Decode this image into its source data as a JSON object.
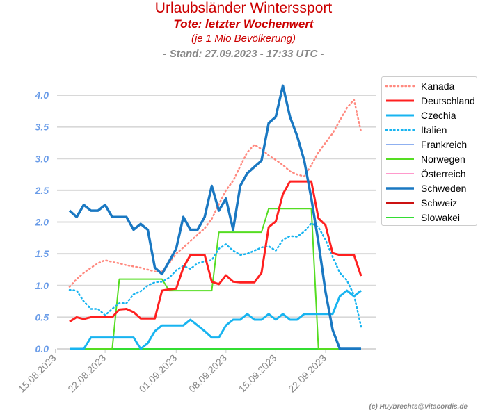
{
  "title": "Urlaubsländer Winterssport",
  "subtitle": "Tote: letzter Wochenwert",
  "subtitle2": "(je 1 Mio Bevölkerung)",
  "stand": "- Stand: 27.09.2023 - 17:33 UTC -",
  "credit": "(c) Huybrechts@vitacordis.de",
  "chart_data": {
    "type": "line",
    "start_date": "2023-08-17",
    "days": 42,
    "ylim": [
      0,
      4.0
    ],
    "yticks": [
      "0.0",
      "0.5",
      "1.0",
      "1.5",
      "2.0",
      "2.5",
      "3.0",
      "3.5",
      "4.0"
    ],
    "xticks": [
      {
        "label": "15.08.2023",
        "day": -2
      },
      {
        "label": "22.08.2023",
        "day": 5
      },
      {
        "label": "01.09.2023",
        "day": 15
      },
      {
        "label": "08.09.2023",
        "day": 22
      },
      {
        "label": "15.09.2023",
        "day": 29
      },
      {
        "label": "22.09.2023",
        "day": 36
      }
    ],
    "grid": true,
    "legend": "right",
    "series": [
      {
        "name": "Kanada",
        "color": "#ff8a80",
        "dash": "dot",
        "width": 2,
        "values": [
          0.98,
          1.1,
          1.2,
          1.28,
          1.35,
          1.4,
          1.37,
          1.35,
          1.32,
          1.3,
          1.28,
          1.25,
          1.22,
          1.22,
          1.35,
          1.5,
          1.6,
          1.7,
          1.8,
          1.9,
          2.05,
          2.28,
          2.5,
          2.65,
          2.88,
          3.1,
          3.22,
          3.15,
          3.05,
          2.98,
          2.9,
          2.8,
          2.75,
          2.72,
          2.9,
          3.1,
          3.25,
          3.4,
          3.6,
          3.8,
          3.93,
          3.42
        ]
      },
      {
        "name": "Deutschland",
        "color": "#ff2020",
        "dash": "solid",
        "width": 3,
        "values": [
          0.43,
          0.5,
          0.47,
          0.5,
          0.5,
          0.5,
          0.5,
          0.62,
          0.63,
          0.58,
          0.48,
          0.48,
          0.48,
          0.92,
          0.94,
          0.95,
          1.28,
          1.48,
          1.48,
          1.48,
          1.06,
          1.02,
          1.16,
          1.06,
          1.05,
          1.05,
          1.05,
          1.2,
          1.92,
          2.01,
          2.44,
          2.64,
          2.64,
          2.64,
          2.64,
          2.06,
          1.95,
          1.51,
          1.48,
          1.48,
          1.48,
          1.15
        ]
      },
      {
        "name": "Czechia",
        "color": "#18b4f0",
        "dash": "solid",
        "width": 3,
        "values": [
          0,
          0,
          0,
          0.18,
          0.18,
          0.18,
          0.18,
          0.18,
          0.18,
          0.18,
          0,
          0.09,
          0.28,
          0.37,
          0.37,
          0.37,
          0.37,
          0.46,
          0.37,
          0.28,
          0.18,
          0.18,
          0.37,
          0.46,
          0.46,
          0.55,
          0.46,
          0.46,
          0.55,
          0.46,
          0.55,
          0.46,
          0.46,
          0.55,
          0.55,
          0.55,
          0.55,
          0.55,
          0.83,
          0.92,
          0.83,
          0.92
        ]
      },
      {
        "name": "Italien",
        "color": "#18b4f0",
        "dash": "dot",
        "width": 2,
        "values": [
          0.93,
          0.92,
          0.75,
          0.63,
          0.63,
          0.53,
          0.63,
          0.72,
          0.72,
          0.86,
          0.91,
          1.0,
          1.05,
          1.06,
          1.12,
          1.24,
          1.31,
          1.26,
          1.35,
          1.38,
          1.4,
          1.58,
          1.65,
          1.55,
          1.48,
          1.5,
          1.55,
          1.6,
          1.62,
          1.55,
          1.72,
          1.78,
          1.77,
          1.85,
          1.98,
          1.92,
          1.72,
          1.45,
          1.2,
          1.08,
          0.85,
          0.35
        ]
      },
      {
        "name": "Frankreich",
        "color": "#8fb0f0",
        "dash": "solid",
        "width": 2,
        "values": [
          0,
          0,
          0,
          0,
          0,
          0,
          0,
          0,
          0,
          0,
          0,
          0,
          0,
          0,
          0,
          0,
          0,
          0,
          0,
          0,
          0,
          0,
          0,
          0,
          0,
          0,
          0,
          0,
          0,
          0,
          0,
          0,
          0,
          0,
          0,
          0,
          0,
          0,
          0,
          0,
          0,
          0
        ]
      },
      {
        "name": "Norwegen",
        "color": "#55dd22",
        "dash": "solid",
        "width": 2,
        "values": [
          0,
          0,
          0,
          0,
          0,
          0,
          0,
          1.1,
          1.1,
          1.1,
          1.1,
          1.1,
          1.1,
          1.1,
          0.92,
          0.92,
          0.92,
          0.92,
          0.92,
          0.92,
          0.92,
          1.84,
          1.84,
          1.84,
          1.84,
          1.84,
          1.84,
          1.84,
          2.21,
          2.21,
          2.21,
          2.21,
          2.21,
          2.21,
          2.21,
          0,
          0,
          0,
          0,
          0,
          0,
          0
        ]
      },
      {
        "name": "Österreich",
        "color": "#ff99cc",
        "dash": "solid",
        "width": 2,
        "values": [
          0,
          0,
          0,
          0,
          0,
          0,
          0,
          0,
          0,
          0,
          0,
          0,
          0,
          0,
          0,
          0,
          0,
          0,
          0,
          0,
          0,
          0,
          0,
          0,
          0,
          0,
          0,
          0,
          0,
          0,
          0,
          0,
          0,
          0,
          0,
          0,
          0,
          0,
          0,
          0,
          0,
          0
        ]
      },
      {
        "name": "Schweden",
        "color": "#1a78c2",
        "dash": "solid",
        "width": 3.5,
        "values": [
          2.18,
          2.08,
          2.27,
          2.18,
          2.18,
          2.27,
          2.08,
          2.08,
          2.08,
          1.88,
          1.97,
          1.88,
          1.28,
          1.18,
          1.38,
          1.58,
          2.08,
          1.88,
          1.88,
          2.08,
          2.57,
          2.18,
          2.37,
          1.88,
          2.57,
          2.77,
          2.87,
          2.97,
          3.56,
          3.66,
          4.15,
          3.66,
          3.36,
          2.97,
          2.37,
          1.68,
          0.9,
          0.3,
          0,
          0,
          0,
          0
        ]
      },
      {
        "name": "Schweiz",
        "color": "#cc1111",
        "dash": "solid",
        "width": 2,
        "values": [
          0,
          0,
          0,
          0,
          0,
          0,
          0,
          0,
          0,
          0,
          0,
          0,
          0,
          0,
          0,
          0,
          0,
          0,
          0,
          0,
          0,
          0,
          0,
          0,
          0,
          0,
          0,
          0,
          0,
          0,
          0,
          0,
          0,
          0,
          0,
          0,
          0,
          0,
          0,
          0,
          0,
          0
        ]
      },
      {
        "name": "Slowakei",
        "color": "#33dd33",
        "dash": "solid",
        "width": 2,
        "values": [
          0,
          0,
          0,
          0,
          0,
          0,
          0,
          0,
          0,
          0,
          0,
          0,
          0,
          0,
          0,
          0,
          0,
          0,
          0,
          0,
          0,
          0,
          0,
          0,
          0,
          0,
          0,
          0,
          0,
          0,
          0,
          0,
          0,
          0,
          0,
          0,
          0,
          0,
          0,
          0,
          0,
          0
        ]
      }
    ]
  }
}
